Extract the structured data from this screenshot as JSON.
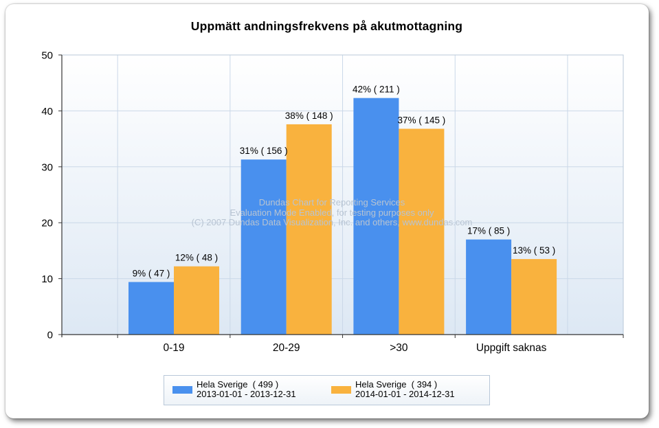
{
  "chart_data": {
    "type": "bar",
    "title": "Uppmätt andningsfrekvens på akutmottagning",
    "categories": [
      "0-19",
      "20-29",
      ">30",
      "Uppgift saknas"
    ],
    "ylim": [
      0,
      50
    ],
    "yticks": [
      0,
      10,
      20,
      30,
      40,
      50
    ],
    "grid": true,
    "legend_position": "bottom",
    "series": [
      {
        "legend_line1": "Hela Sverige  ( 499 )",
        "legend_line2": "2013-01-01 - 2013-12-31",
        "color": "#4990ee",
        "values": [
          9.4,
          31.3,
          42.3,
          17.0
        ],
        "labels": [
          "9% ( 47 )",
          "31% ( 156 )",
          "42% ( 211 )",
          "17% ( 85 )"
        ]
      },
      {
        "legend_line1": "Hela Sverige  ( 394 )",
        "legend_line2": "2014-01-01 - 2014-12-31",
        "color": "#f9b23e",
        "values": [
          12.2,
          37.6,
          36.8,
          13.5
        ],
        "labels": [
          "12% ( 48 )",
          "38% ( 148 )",
          "37% ( 145 )",
          "13% ( 53 )"
        ]
      }
    ],
    "watermark": [
      "Dundas Chart for Reporting Services",
      "Evaluation Mode Enabled, for testing purposes only",
      "(C) 2007 Dundas Data Visualization, Inc. and others, www.dundas.com"
    ]
  }
}
